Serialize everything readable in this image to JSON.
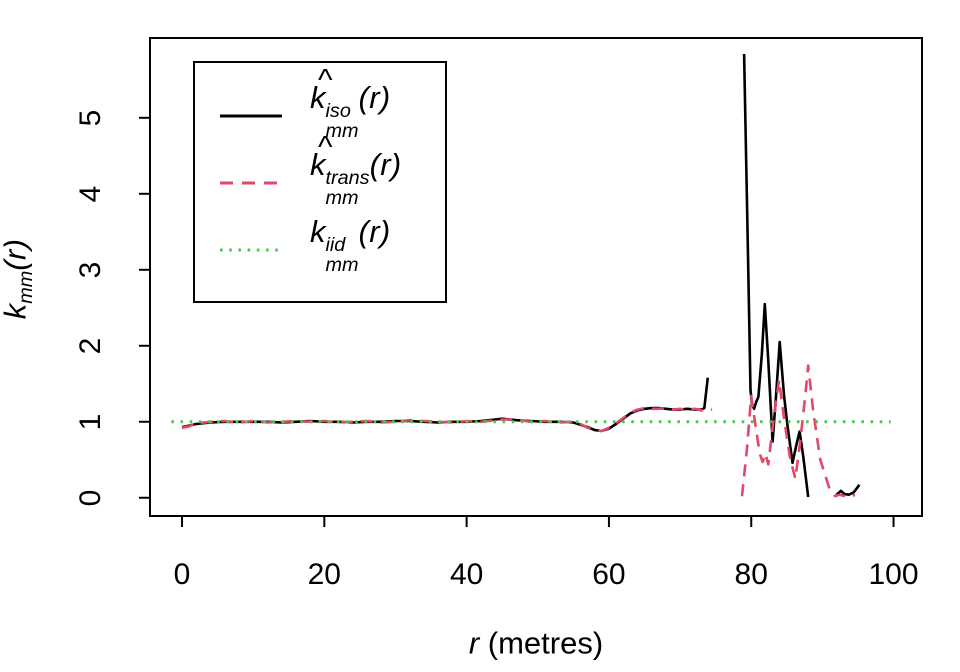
{
  "figure": {
    "background": "#ffffff",
    "axis_color": "#000000",
    "xlabel": {
      "var": "r",
      "rest": " (metres)"
    },
    "ylabel": {
      "base": "k",
      "sub": "mm",
      "var": "r"
    },
    "legend": {
      "entries": [
        {
          "style": "solid",
          "color": "#000000",
          "label": {
            "hat": true,
            "base": "k",
            "sup": "iso",
            "sub": "mm",
            "var": "r"
          }
        },
        {
          "style": "dashed",
          "color": "#e4476a",
          "label": {
            "hat": true,
            "base": "k",
            "sup": "trans",
            "sub": "mm",
            "var": "r"
          }
        },
        {
          "style": "dotted",
          "color": "#4ec44e",
          "label": {
            "hat": false,
            "base": "k",
            "sup": "iid",
            "sub": "mm",
            "var": "r"
          }
        }
      ]
    },
    "chart_data": {
      "type": "line",
      "title": "",
      "xlabel": "r (metres)",
      "ylabel": "k_mm(r)",
      "x_ticks": [
        0,
        20,
        40,
        60,
        80,
        100
      ],
      "y_ticks": [
        0,
        1,
        2,
        3,
        4,
        5
      ],
      "x_range": [
        -4.5,
        104
      ],
      "y_range": [
        -0.24,
        6.05
      ],
      "grid": false,
      "legend_position": "top-left",
      "series": [
        {
          "key": "iso",
          "label": "khat^iso_mm(r)",
          "color": "#000000",
          "style": "solid",
          "segments": [
            [
              [
                0,
                0.93
              ],
              [
                1,
                0.95
              ],
              [
                2,
                0.97
              ],
              [
                4,
                0.99
              ],
              [
                6,
                1.0
              ],
              [
                8,
                1.0
              ],
              [
                10,
                1.0
              ],
              [
                12,
                1.0
              ],
              [
                14,
                0.99
              ],
              [
                16,
                1.0
              ],
              [
                18,
                1.01
              ],
              [
                20,
                1.0
              ],
              [
                22,
                1.0
              ],
              [
                24,
                0.99
              ],
              [
                26,
                1.0
              ],
              [
                28,
                1.0
              ],
              [
                30,
                1.01
              ],
              [
                32,
                1.01
              ],
              [
                34,
                1.0
              ],
              [
                36,
                0.99
              ],
              [
                38,
                1.0
              ],
              [
                40,
                1.0
              ],
              [
                42,
                1.01
              ],
              [
                44,
                1.03
              ],
              [
                45,
                1.04
              ],
              [
                47,
                1.02
              ],
              [
                49,
                1.01
              ],
              [
                51,
                1.0
              ],
              [
                53,
                1.0
              ],
              [
                55,
                0.99
              ],
              [
                56,
                0.96
              ],
              [
                57,
                0.93
              ],
              [
                58,
                0.89
              ],
              [
                59,
                0.88
              ],
              [
                60,
                0.91
              ],
              [
                61,
                0.97
              ],
              [
                62,
                1.04
              ],
              [
                63,
                1.11
              ],
              [
                64,
                1.15
              ],
              [
                65,
                1.17
              ],
              [
                66,
                1.18
              ],
              [
                67,
                1.18
              ],
              [
                68,
                1.17
              ],
              [
                69,
                1.16
              ],
              [
                70,
                1.16
              ],
              [
                71,
                1.17
              ],
              [
                72,
                1.16
              ],
              [
                73,
                1.16
              ],
              [
                73.4,
                1.18
              ],
              [
                73.9,
                1.58
              ]
            ],
            [
              [
                79.0,
                5.84
              ],
              [
                79.5,
                3.4
              ],
              [
                79.9,
                1.42
              ],
              [
                80.1,
                1.24
              ],
              [
                80.4,
                1.17
              ],
              [
                80.7,
                1.26
              ],
              [
                81.0,
                1.33
              ],
              [
                81.5,
                1.9
              ],
              [
                81.9,
                2.55
              ],
              [
                82.4,
                1.8
              ],
              [
                83.0,
                0.74
              ],
              [
                83.5,
                1.35
              ],
              [
                84.0,
                2.05
              ],
              [
                84.6,
                1.35
              ],
              [
                85.1,
                0.95
              ],
              [
                85.8,
                0.46
              ],
              [
                86.4,
                0.72
              ],
              [
                86.8,
                0.87
              ],
              [
                87.3,
                0.55
              ],
              [
                88.0,
                0.01
              ]
            ],
            [
              [
                92.0,
                0.04
              ],
              [
                92.6,
                0.09
              ],
              [
                93.1,
                0.05
              ],
              [
                93.7,
                0.04
              ],
              [
                94.4,
                0.07
              ],
              [
                95.2,
                0.17
              ]
            ]
          ]
        },
        {
          "key": "trans",
          "label": "khat^trans_mm(r)",
          "color": "#e4476a",
          "style": "dashed",
          "segments": [
            [
              [
                0,
                0.92
              ],
              [
                1,
                0.94
              ],
              [
                2,
                0.98
              ],
              [
                4,
                1.0
              ],
              [
                6,
                1.01
              ],
              [
                8,
                0.99
              ],
              [
                10,
                1.01
              ],
              [
                12,
                0.99
              ],
              [
                14,
                1.0
              ],
              [
                16,
                1.01
              ],
              [
                18,
                1.0
              ],
              [
                20,
                1.01
              ],
              [
                22,
                0.99
              ],
              [
                24,
                1.0
              ],
              [
                26,
                1.01
              ],
              [
                28,
                0.99
              ],
              [
                30,
                1.0
              ],
              [
                32,
                1.02
              ],
              [
                34,
                1.01
              ],
              [
                36,
                1.0
              ],
              [
                38,
                0.99
              ],
              [
                40,
                1.01
              ],
              [
                42,
                1.0
              ],
              [
                44,
                1.02
              ],
              [
                45,
                1.03
              ],
              [
                47,
                1.03
              ],
              [
                49,
                1.0
              ],
              [
                51,
                1.01
              ],
              [
                53,
                0.99
              ],
              [
                55,
                1.0
              ],
              [
                56,
                0.97
              ],
              [
                57,
                0.92
              ],
              [
                58,
                0.89
              ],
              [
                59,
                0.88
              ],
              [
                60,
                0.92
              ],
              [
                61,
                0.98
              ],
              [
                62,
                1.05
              ],
              [
                63,
                1.12
              ],
              [
                64,
                1.16
              ],
              [
                65,
                1.18
              ],
              [
                66,
                1.17
              ],
              [
                67,
                1.17
              ],
              [
                68,
                1.18
              ],
              [
                69,
                1.16
              ],
              [
                70,
                1.17
              ],
              [
                71,
                1.15
              ],
              [
                72,
                1.17
              ],
              [
                73,
                1.15
              ],
              [
                74.5,
                1.16
              ]
            ],
            [
              [
                78.7,
                0.02
              ],
              [
                79.4,
                0.65
              ],
              [
                80.0,
                1.34
              ],
              [
                80.6,
                0.95
              ],
              [
                81.2,
                0.58
              ],
              [
                81.6,
                0.47
              ],
              [
                82.0,
                0.58
              ],
              [
                82.4,
                0.44
              ],
              [
                83.1,
                1.0
              ],
              [
                83.9,
                1.55
              ],
              [
                84.6,
                1.05
              ],
              [
                85.4,
                0.55
              ],
              [
                86.2,
                0.25
              ],
              [
                86.9,
                0.75
              ],
              [
                87.6,
                1.35
              ],
              [
                88.0,
                1.74
              ],
              [
                88.7,
                1.15
              ],
              [
                89.7,
                0.5
              ],
              [
                91.0,
                0.12
              ],
              [
                91.8,
                0.02
              ],
              [
                92.4,
                0.04
              ],
              [
                93.2,
                0.02
              ],
              [
                93.9,
                0.04
              ],
              [
                94.6,
                0.03
              ]
            ]
          ]
        },
        {
          "key": "iid",
          "label": "k^iid_mm(r)",
          "color": "#4ec44e",
          "style": "dotted",
          "segments": [
            [
              [
                -1.5,
                1.0
              ],
              [
                99.6,
                1.0
              ]
            ]
          ]
        }
      ]
    }
  }
}
